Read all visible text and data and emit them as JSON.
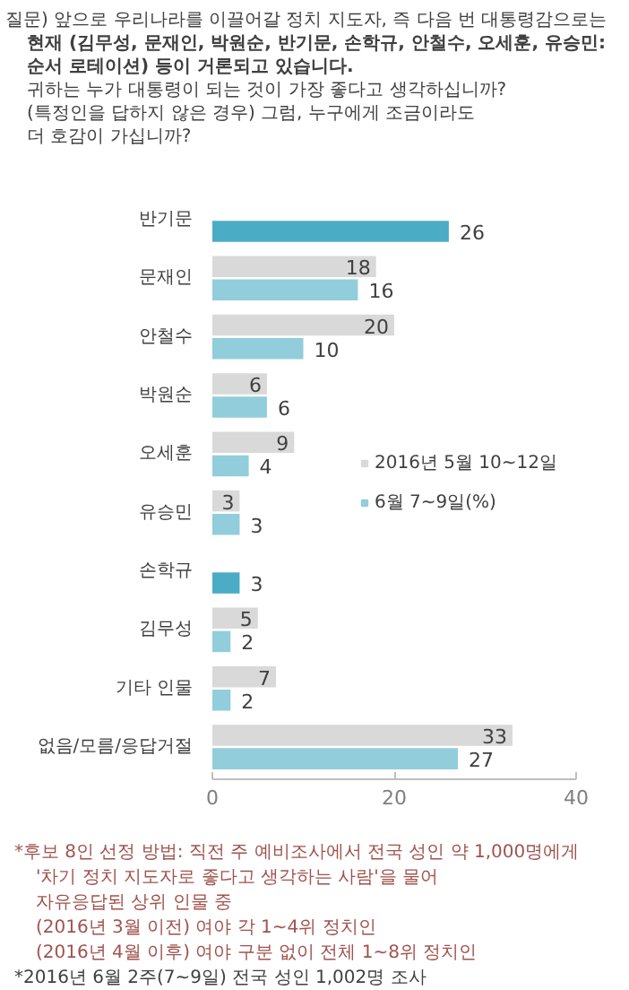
{
  "chart_data": {
    "type": "bar",
    "orientation": "horizontal",
    "title": "질문) 앞으로 우리나라를 이끌어갈 정치 지도자, 즉 다음 번 대통령감으로는\n현재 (김무성, 문재인, 박원순, 반기문, 손학규, 안철수, 오세훈, 유승민:\n순서 로테이션) 등이 거론되고 있습니다.\n귀하는 누가 대통령이 되는 것이 가장 좋다고 생각하십니까?\n(특정인을 답하지 않은 경우) 그럼, 누구에게 조금이라도\n더 호감이 가십니까?",
    "categories": [
      "반기문",
      "문재인",
      "안철수",
      "박원순",
      "오세훈",
      "유승민",
      "손학규",
      "김무성",
      "기타 인물",
      "없음/모름/응답거절"
    ],
    "series": [
      {
        "name": "2016년 5월 10~12일",
        "color": "#d9d9d9",
        "values": [
          null,
          18,
          20,
          6,
          9,
          3,
          null,
          5,
          7,
          33
        ]
      },
      {
        "name": "6월 7~9일(%)",
        "color": "#92cddc",
        "colors": [
          "#4bacc6",
          "#92cddc",
          "#92cddc",
          "#92cddc",
          "#92cddc",
          "#92cddc",
          "#4bacc6",
          "#92cddc",
          "#92cddc",
          "#92cddc"
        ],
        "values": [
          26,
          16,
          10,
          6,
          4,
          3,
          3,
          2,
          2,
          27
        ]
      }
    ],
    "xlim": [
      0,
      40
    ],
    "xticks": [
      0,
      20,
      40
    ],
    "grid": false,
    "legend": "right",
    "data_labels": true,
    "annotations": [
      "*후보 8인 선정 방법: 직전 주 예비조사에서 전국 성인 약 1,000명에게\n'차기 정치 지도자로 좋다고 생각하는 사람'을 물어\n자유응답된 상위 인물 중\n(2016년 3월 이전) 여야 각 1~4위 정치인\n(2016년 4월 이후) 여야 구분 없이 전체 1~8위 정치인",
      "*2016년 6월 2주(7~9일) 전국 성인 1,002명 조사"
    ]
  }
}
